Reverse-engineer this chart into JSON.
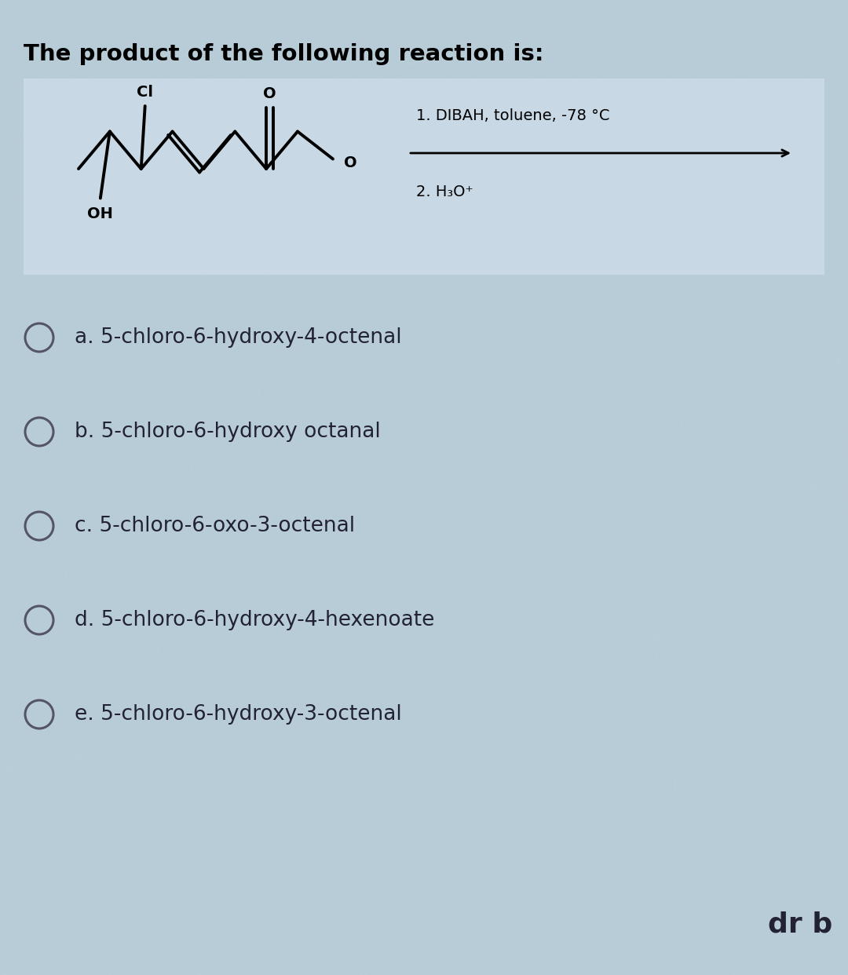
{
  "title": "The product of the following reaction is:",
  "title_fontsize": 21,
  "title_fontweight": "bold",
  "bg_color_outer": "#b8ccd8",
  "bg_color_box": "#ccdce8",
  "reaction_conditions_line1": "1. DIBAH, toluene, -78 °C",
  "reaction_conditions_line2": "2. H₃O⁺",
  "options": [
    "a. 5-chloro-6-hydroxy-4-octenal",
    "b. 5-chloro-6-hydroxy octanal",
    "c. 5-chloro-6-oxo-3-octenal",
    "d. 5-chloro-6-hydroxy-4-hexenoate",
    "e. 5-chloro-6-hydroxy-3-octenal"
  ],
  "options_fontsize": 19,
  "answer": "dr b",
  "answer_fontsize": 26,
  "answer_fontweight": "bold",
  "circle_color": "#555566",
  "text_color": "#222233"
}
